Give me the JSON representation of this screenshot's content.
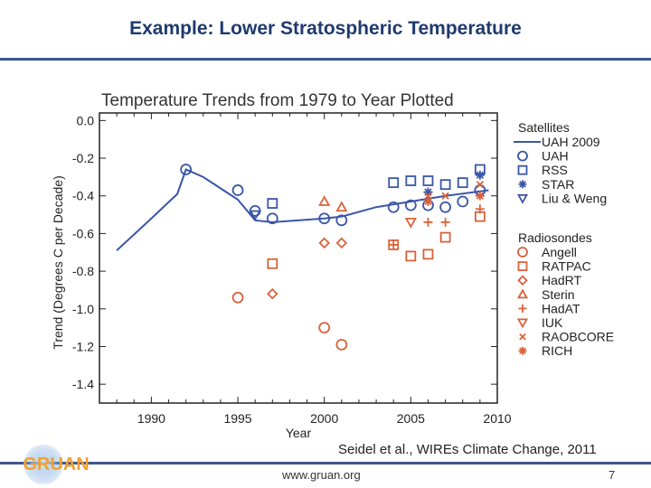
{
  "slide": {
    "title": "Example: Lower Stratospheric Temperature",
    "citation": "Seidel et al., WIREs Climate Change, 2011",
    "url": "www.gruan.org",
    "page_number": "7",
    "logo_text": "GRUAN",
    "accent_color": "#3a5590"
  },
  "chart_data": {
    "type": "scatter",
    "title": "Temperature Trends from 1979 to Year Plotted",
    "xlabel": "Year",
    "ylabel": "Trend  (Degrees C per Decade)",
    "xlim": [
      1987,
      2010
    ],
    "ylim": [
      -1.5,
      0.04
    ],
    "xticks": [
      "1990",
      "1995",
      "2000",
      "2005",
      "2010"
    ],
    "yticks": [
      "0.0",
      "-0.2",
      "-0.4",
      "-0.6",
      "-0.8",
      "-1.0",
      "-1.2",
      "-1.4"
    ],
    "grid": false,
    "legend_placement": "right",
    "colors": {
      "satellites": "#3a56a8",
      "radiosondes": "#d8623a"
    },
    "legend_groups": [
      {
        "title": "Satellites",
        "color": "satellites",
        "entries": [
          "UAH 2009",
          "UAH",
          "RSS",
          "STAR",
          "Liu & Weng"
        ]
      },
      {
        "title": "Radiosondes",
        "color": "radiosondes",
        "entries": [
          "Angell",
          "RATPAC",
          "HadRT",
          "Sterin",
          "HadAT",
          "IUK",
          "RAOBCORE",
          "RICH"
        ]
      }
    ],
    "series": [
      {
        "name": "UAH 2009",
        "group": "satellites",
        "marker": "line",
        "x": [
          1988,
          1990,
          1991.5,
          1992,
          1993,
          1995,
          1996,
          1997,
          2000,
          2001,
          2003,
          2005,
          2007,
          2009.5
        ],
        "y": [
          -0.69,
          -0.52,
          -0.39,
          -0.26,
          -0.3,
          -0.42,
          -0.53,
          -0.54,
          -0.52,
          -0.51,
          -0.46,
          -0.43,
          -0.4,
          -0.37
        ]
      },
      {
        "name": "UAH",
        "group": "satellites",
        "marker": "circle",
        "x": [
          1992,
          1995,
          1996,
          1997,
          2000,
          2001,
          2004,
          2005,
          2006,
          2007,
          2008,
          2009
        ],
        "y": [
          -0.26,
          -0.37,
          -0.48,
          -0.52,
          -0.52,
          -0.53,
          -0.46,
          -0.45,
          -0.45,
          -0.46,
          -0.43,
          -0.37
        ]
      },
      {
        "name": "RSS",
        "group": "satellites",
        "marker": "square",
        "x": [
          1997,
          2004,
          2005,
          2006,
          2007,
          2008,
          2009
        ],
        "y": [
          -0.44,
          -0.33,
          -0.32,
          -0.32,
          -0.34,
          -0.33,
          -0.26
        ]
      },
      {
        "name": "STAR",
        "group": "satellites",
        "marker": "asterisk",
        "x": [
          2006,
          2009
        ],
        "y": [
          -0.38,
          -0.29
        ]
      },
      {
        "name": "Liu & Weng",
        "group": "satellites",
        "marker": "tri-down",
        "x": [
          1996
        ],
        "y": [
          -0.5
        ]
      },
      {
        "name": "Angell",
        "group": "radiosondes",
        "marker": "circle",
        "x": [
          1995,
          2000,
          2001
        ],
        "y": [
          -0.94,
          -1.1,
          -1.19
        ]
      },
      {
        "name": "RATPAC",
        "group": "radiosondes",
        "marker": "square",
        "x": [
          1997,
          2004,
          2005,
          2006,
          2007,
          2009
        ],
        "y": [
          -0.76,
          -0.66,
          -0.72,
          -0.71,
          -0.62,
          -0.51
        ]
      },
      {
        "name": "HadRT",
        "group": "radiosondes",
        "marker": "diamond",
        "x": [
          1997,
          2000,
          2001
        ],
        "y": [
          -0.92,
          -0.65,
          -0.65
        ]
      },
      {
        "name": "Sterin",
        "group": "radiosondes",
        "marker": "tri-up",
        "x": [
          2000,
          2001
        ],
        "y": [
          -0.43,
          -0.46
        ]
      },
      {
        "name": "HadAT",
        "group": "radiosondes",
        "marker": "plus",
        "x": [
          2004,
          2006,
          2007,
          2009
        ],
        "y": [
          -0.66,
          -0.54,
          -0.54,
          -0.47
        ]
      },
      {
        "name": "IUK",
        "group": "radiosondes",
        "marker": "tri-down",
        "x": [
          2005
        ],
        "y": [
          -0.54
        ]
      },
      {
        "name": "RAOBCORE",
        "group": "radiosondes",
        "marker": "cross",
        "x": [
          2006,
          2007,
          2009
        ],
        "y": [
          -0.4,
          -0.4,
          -0.34
        ]
      },
      {
        "name": "RICH",
        "group": "radiosondes",
        "marker": "asterisk",
        "x": [
          2006,
          2009
        ],
        "y": [
          -0.43,
          -0.4
        ]
      }
    ]
  }
}
